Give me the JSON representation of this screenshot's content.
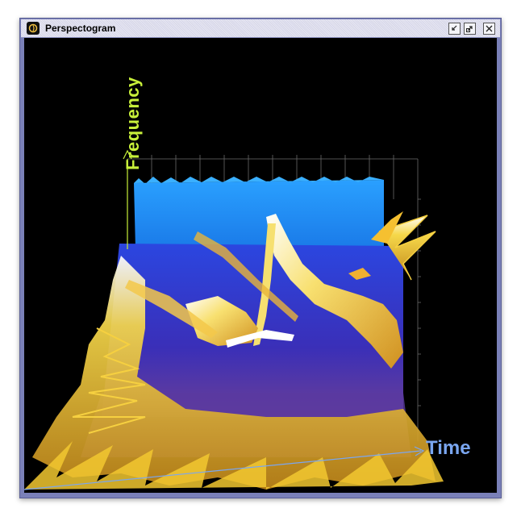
{
  "window": {
    "title": "Perspectogram",
    "icon": "app-icon"
  },
  "controls": {
    "minimize_icon": "minimize-icon",
    "maximize_icon": "maximize-icon",
    "close_icon": "close-icon"
  },
  "plot": {
    "y_axis_label": "Frequency",
    "x_axis_label": "Time",
    "background": "#000000",
    "y_axis_color": "#c8f03a",
    "x_axis_color": "#7aa6f0",
    "grid_color": "#777777",
    "surface_colors": [
      "#1e90ff",
      "#2a2ac8",
      "#5a3aa8",
      "#c88a1a",
      "#f0c020",
      "#ffffff"
    ]
  }
}
